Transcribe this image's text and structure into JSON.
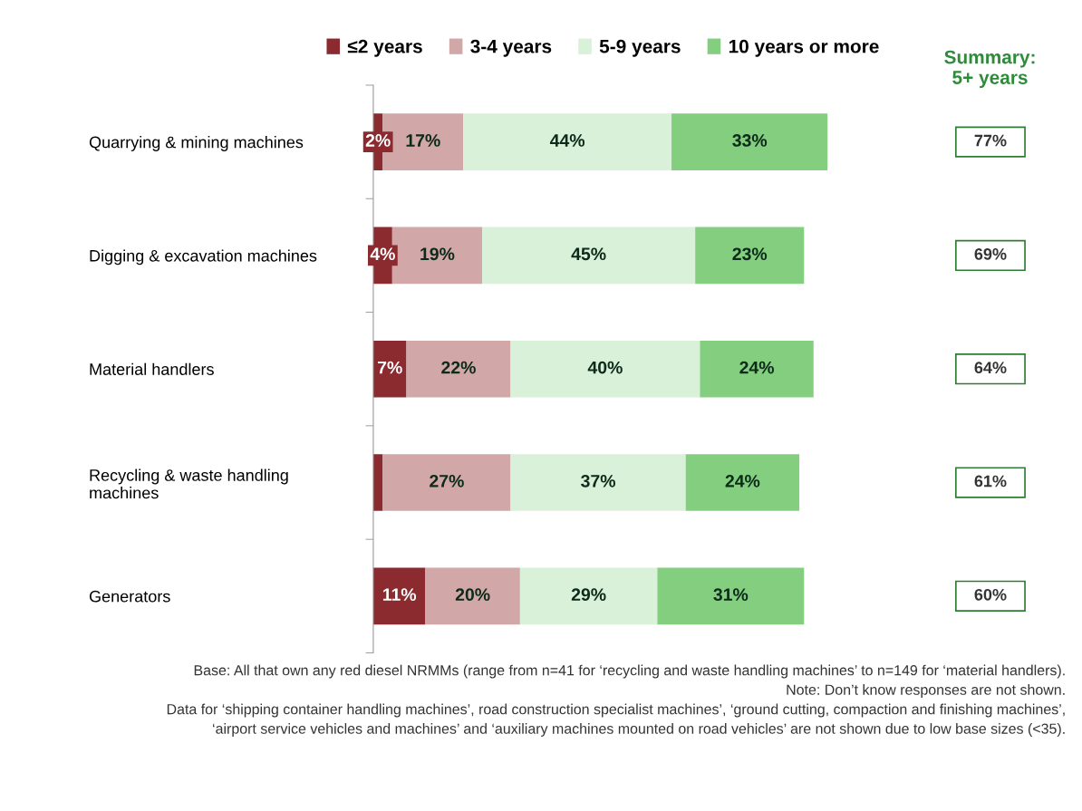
{
  "chart_data": {
    "type": "bar",
    "orientation": "horizontal",
    "stacked": true,
    "legend": "top",
    "tick_labels": "y",
    "grid": false,
    "categories": [
      "Quarrying & mining machines",
      "Digging & excavation machines",
      "Material handlers",
      "Recycling & waste handling\nmachines",
      "Generators"
    ],
    "series": [
      {
        "name": "≤2 years",
        "color": "#8b2a2f",
        "values": [
          2,
          4,
          7,
          2,
          11
        ],
        "value_labels": [
          "2%",
          "4%",
          "7%",
          null,
          "11%"
        ]
      },
      {
        "name": "3-4 years",
        "color": "#d1a7a8",
        "values": [
          17,
          19,
          22,
          27,
          20
        ],
        "value_labels": [
          "17%",
          "19%",
          "22%",
          "27%",
          "20%"
        ]
      },
      {
        "name": "5-9 years",
        "color": "#d9f0d9",
        "values": [
          44,
          45,
          40,
          37,
          29
        ],
        "value_labels": [
          "44%",
          "45%",
          "40%",
          "37%",
          "29%"
        ]
      },
      {
        "name": "10 years or more",
        "color": "#84cf7f",
        "values": [
          33,
          23,
          24,
          24,
          31
        ],
        "value_labels": [
          "33%",
          "23%",
          "24%",
          "24%",
          "31%"
        ]
      }
    ],
    "annotations": [
      "Summary:\n5+ years",
      "77%",
      "69%",
      "64%",
      "61%",
      "60%",
      "Base: All that own any red diesel NRMMs (range from n=41 for ‘recycling and waste handling machines’ to n=149 for ‘material handlers).",
      "Note: Don’t know responses are not shown.",
      "Data for ‘shipping container handling machines’, road construction specialist machines’, ‘ground cutting, compaction and finishing machines’,",
      "‘airport service vehicles and machines’ and ‘auxiliary machines mounted on road vehicles’ are not shown due to low base sizes (<35)."
    ]
  }
}
